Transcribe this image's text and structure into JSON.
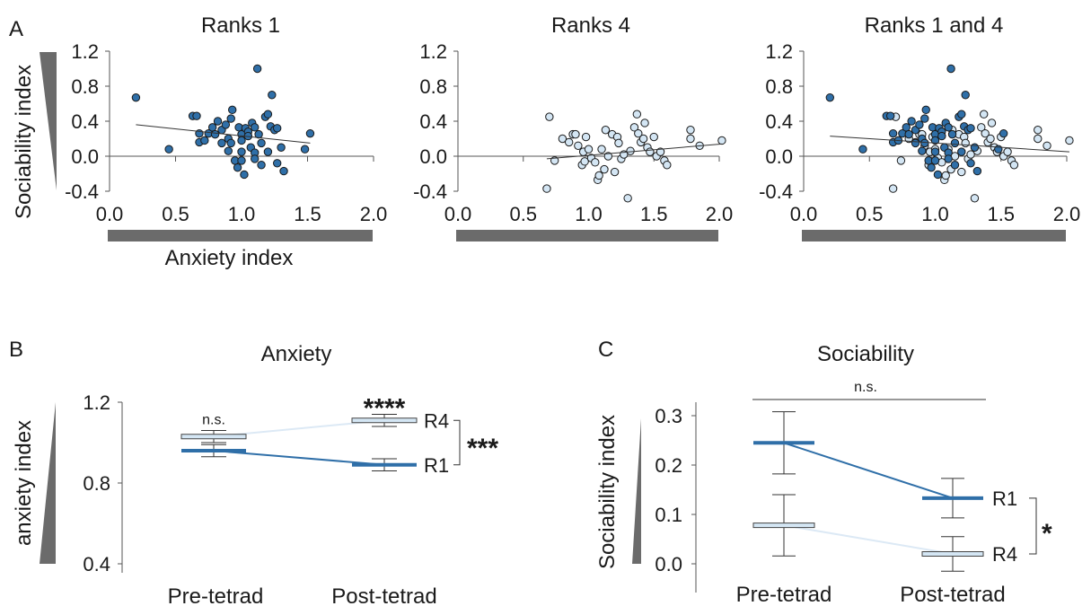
{
  "panel_letters": {
    "a": "A",
    "b": "B",
    "c": "C"
  },
  "colors": {
    "r1": "#2f6fa8",
    "r4": "#d4e6f4",
    "r4_line": "#dce9f5",
    "axis": "#555555",
    "wedge": "#6b6b6b"
  },
  "chart_data": [
    {
      "type": "scatter",
      "title": "Ranks 1",
      "xlabel": "Anxiety index",
      "ylabel": "Sociability index",
      "xlim": [
        0,
        2
      ],
      "ylim": [
        -0.4,
        1.2
      ],
      "xticks": [
        "0.0",
        "0.5",
        "1.0",
        "1.5",
        "2.0"
      ],
      "yticks": [
        "-0.4",
        "0.0",
        "0.4",
        "0.8",
        "1.2"
      ],
      "series": [
        {
          "group": "r1",
          "points": [
            [
              0.2,
              0.67
            ],
            [
              0.45,
              0.08
            ],
            [
              0.63,
              0.46
            ],
            [
              0.66,
              0.46
            ],
            [
              0.68,
              0.26
            ],
            [
              0.68,
              0.16
            ],
            [
              0.72,
              0.18
            ],
            [
              0.75,
              0.26
            ],
            [
              0.78,
              0.33
            ],
            [
              0.8,
              0.25
            ],
            [
              0.82,
              0.4
            ],
            [
              0.85,
              0.3
            ],
            [
              0.85,
              0.15
            ],
            [
              0.88,
              0.36
            ],
            [
              0.9,
              0.2
            ],
            [
              0.9,
              0.06
            ],
            [
              0.92,
              0.43
            ],
            [
              0.92,
              0.15
            ],
            [
              0.93,
              0.53
            ],
            [
              0.95,
              -0.05
            ],
            [
              0.97,
              -0.13
            ],
            [
              0.98,
              0.33
            ],
            [
              1.0,
              0.25
            ],
            [
              1.0,
              0.18
            ],
            [
              1.0,
              0.05
            ],
            [
              1.0,
              -0.05
            ],
            [
              1.02,
              -0.21
            ],
            [
              1.03,
              0.32
            ],
            [
              1.05,
              0.28
            ],
            [
              1.05,
              0.23
            ],
            [
              1.07,
              0.1
            ],
            [
              1.08,
              0.38
            ],
            [
              1.1,
              0.33
            ],
            [
              1.1,
              0.04
            ],
            [
              1.1,
              -0.03
            ],
            [
              1.12,
              1.0
            ],
            [
              1.13,
              0.25
            ],
            [
              1.15,
              0.15
            ],
            [
              1.15,
              -0.1
            ],
            [
              1.18,
              0.45
            ],
            [
              1.2,
              0.48
            ],
            [
              1.2,
              0.05
            ],
            [
              1.22,
              0.34
            ],
            [
              1.23,
              0.7
            ],
            [
              1.25,
              0.3
            ],
            [
              1.27,
              0.32
            ],
            [
              1.27,
              -0.08
            ],
            [
              1.3,
              0.1
            ],
            [
              1.32,
              -0.17
            ],
            [
              1.48,
              0.08
            ],
            [
              1.52,
              0.26
            ]
          ]
        }
      ],
      "fit": [
        [
          0.2,
          0.36
        ],
        [
          1.52,
          0.15
        ]
      ]
    },
    {
      "type": "scatter",
      "title": "Ranks 4",
      "xlabel": "",
      "ylabel": "",
      "xlim": [
        0,
        2
      ],
      "ylim": [
        -0.4,
        1.2
      ],
      "xticks": [
        "0.0",
        "0.5",
        "1.0",
        "1.5",
        "2.0"
      ],
      "yticks": [
        "-0.4",
        "0.0",
        "0.4",
        "0.8",
        "1.2"
      ],
      "series": [
        {
          "group": "r4",
          "points": [
            [
              0.68,
              -0.37
            ],
            [
              0.7,
              0.45
            ],
            [
              0.74,
              -0.05
            ],
            [
              0.8,
              0.2
            ],
            [
              0.85,
              0.16
            ],
            [
              0.88,
              0.25
            ],
            [
              0.9,
              0.25
            ],
            [
              0.92,
              0.12
            ],
            [
              0.95,
              -0.1
            ],
            [
              0.96,
              0.05
            ],
            [
              0.97,
              -0.06
            ],
            [
              0.98,
              0.22
            ],
            [
              1.0,
              0.08
            ],
            [
              1.02,
              -0.02
            ],
            [
              1.05,
              -0.07
            ],
            [
              1.07,
              -0.27
            ],
            [
              1.08,
              -0.22
            ],
            [
              1.1,
              0.08
            ],
            [
              1.12,
              -0.15
            ],
            [
              1.13,
              0.3
            ],
            [
              1.15,
              0.0
            ],
            [
              1.18,
              0.25
            ],
            [
              1.2,
              -0.18
            ],
            [
              1.22,
              0.22
            ],
            [
              1.23,
              0.15
            ],
            [
              1.25,
              -0.03
            ],
            [
              1.27,
              0.02
            ],
            [
              1.3,
              -0.48
            ],
            [
              1.32,
              0.06
            ],
            [
              1.35,
              0.33
            ],
            [
              1.37,
              0.48
            ],
            [
              1.38,
              0.26
            ],
            [
              1.4,
              0.16
            ],
            [
              1.42,
              0.2
            ],
            [
              1.43,
              0.38
            ],
            [
              1.45,
              0.1
            ],
            [
              1.47,
              0.05
            ],
            [
              1.5,
              0.22
            ],
            [
              1.52,
              0.0
            ],
            [
              1.55,
              0.05
            ],
            [
              1.58,
              -0.05
            ],
            [
              1.6,
              -0.1
            ],
            [
              1.78,
              0.3
            ],
            [
              1.78,
              0.2
            ],
            [
              1.85,
              0.12
            ],
            [
              2.02,
              0.18
            ]
          ]
        }
      ],
      "fit": [
        [
          0.68,
          -0.03
        ],
        [
          2.02,
          0.14
        ]
      ]
    },
    {
      "type": "scatter",
      "title": "Ranks 1 and 4",
      "xlabel": "",
      "ylabel": "",
      "xlim": [
        0,
        2
      ],
      "ylim": [
        -0.4,
        1.2
      ],
      "xticks": [
        "0.0",
        "0.5",
        "1.0",
        "1.5",
        "2.0"
      ],
      "yticks": [
        "-0.4",
        "0.0",
        "0.4",
        "0.8",
        "1.2"
      ],
      "series": [
        {
          "group": "r4",
          "points": [
            [
              0.68,
              -0.37
            ],
            [
              0.7,
              0.45
            ],
            [
              0.74,
              -0.05
            ],
            [
              0.8,
              0.2
            ],
            [
              0.85,
              0.16
            ],
            [
              0.88,
              0.25
            ],
            [
              0.9,
              0.25
            ],
            [
              0.92,
              0.12
            ],
            [
              0.95,
              -0.1
            ],
            [
              0.96,
              0.05
            ],
            [
              0.97,
              -0.06
            ],
            [
              0.98,
              0.22
            ],
            [
              1.0,
              0.08
            ],
            [
              1.02,
              -0.02
            ],
            [
              1.05,
              -0.07
            ],
            [
              1.07,
              -0.27
            ],
            [
              1.08,
              -0.22
            ],
            [
              1.1,
              0.08
            ],
            [
              1.12,
              -0.15
            ],
            [
              1.13,
              0.3
            ],
            [
              1.15,
              0.0
            ],
            [
              1.18,
              0.25
            ],
            [
              1.2,
              -0.18
            ],
            [
              1.22,
              0.22
            ],
            [
              1.23,
              0.15
            ],
            [
              1.25,
              -0.03
            ],
            [
              1.27,
              0.02
            ],
            [
              1.3,
              -0.48
            ],
            [
              1.32,
              0.06
            ],
            [
              1.35,
              0.33
            ],
            [
              1.37,
              0.48
            ],
            [
              1.38,
              0.26
            ],
            [
              1.4,
              0.16
            ],
            [
              1.42,
              0.2
            ],
            [
              1.43,
              0.38
            ],
            [
              1.45,
              0.1
            ],
            [
              1.47,
              0.05
            ],
            [
              1.5,
              0.22
            ],
            [
              1.52,
              0.0
            ],
            [
              1.55,
              0.05
            ],
            [
              1.58,
              -0.05
            ],
            [
              1.6,
              -0.1
            ],
            [
              1.78,
              0.3
            ],
            [
              1.78,
              0.2
            ],
            [
              1.85,
              0.12
            ],
            [
              2.02,
              0.18
            ]
          ]
        },
        {
          "group": "r1",
          "points": [
            [
              0.2,
              0.67
            ],
            [
              0.45,
              0.08
            ],
            [
              0.63,
              0.46
            ],
            [
              0.66,
              0.46
            ],
            [
              0.68,
              0.26
            ],
            [
              0.68,
              0.16
            ],
            [
              0.72,
              0.18
            ],
            [
              0.75,
              0.26
            ],
            [
              0.78,
              0.33
            ],
            [
              0.8,
              0.25
            ],
            [
              0.82,
              0.4
            ],
            [
              0.85,
              0.3
            ],
            [
              0.85,
              0.15
            ],
            [
              0.88,
              0.36
            ],
            [
              0.9,
              0.2
            ],
            [
              0.9,
              0.06
            ],
            [
              0.92,
              0.43
            ],
            [
              0.92,
              0.15
            ],
            [
              0.93,
              0.53
            ],
            [
              0.95,
              -0.05
            ],
            [
              0.97,
              -0.13
            ],
            [
              0.98,
              0.33
            ],
            [
              1.0,
              0.25
            ],
            [
              1.0,
              0.18
            ],
            [
              1.0,
              0.05
            ],
            [
              1.0,
              -0.05
            ],
            [
              1.02,
              -0.21
            ],
            [
              1.03,
              0.32
            ],
            [
              1.05,
              0.28
            ],
            [
              1.05,
              0.23
            ],
            [
              1.07,
              0.1
            ],
            [
              1.08,
              0.38
            ],
            [
              1.1,
              0.33
            ],
            [
              1.1,
              0.04
            ],
            [
              1.1,
              -0.03
            ],
            [
              1.12,
              1.0
            ],
            [
              1.13,
              0.25
            ],
            [
              1.15,
              0.15
            ],
            [
              1.15,
              -0.1
            ],
            [
              1.18,
              0.45
            ],
            [
              1.2,
              0.48
            ],
            [
              1.2,
              0.05
            ],
            [
              1.22,
              0.34
            ],
            [
              1.23,
              0.7
            ],
            [
              1.25,
              0.3
            ],
            [
              1.27,
              0.32
            ],
            [
              1.27,
              -0.08
            ],
            [
              1.3,
              0.1
            ],
            [
              1.32,
              -0.17
            ],
            [
              1.48,
              0.08
            ],
            [
              1.52,
              0.26
            ]
          ]
        }
      ],
      "fit": [
        [
          0.2,
          0.23
        ],
        [
          2.02,
          0.05
        ]
      ]
    },
    {
      "type": "line",
      "title": "Anxiety",
      "ylabel": "anxiety  index",
      "categories": [
        "Pre-tetrad",
        "Post-tetrad"
      ],
      "ylim": [
        0.4,
        1.2
      ],
      "yticks": [
        "0.4",
        "0.8",
        "1.2"
      ],
      "series": [
        {
          "name": "R4",
          "group": "r4",
          "values": [
            1.03,
            1.11
          ],
          "err": [
            0.03,
            0.03
          ]
        },
        {
          "name": "R1",
          "group": "r1",
          "values": [
            0.96,
            0.89
          ],
          "err": [
            0.03,
            0.03
          ]
        }
      ],
      "annotations": {
        "pre": "n.s.",
        "post": "****",
        "between": "***"
      }
    },
    {
      "type": "line",
      "title": "Sociability",
      "ylabel": "Sociability index",
      "categories": [
        "Pre-tetrad",
        "Post-tetrad"
      ],
      "ylim": [
        0.0,
        0.3
      ],
      "yticks": [
        "0.0",
        "0.1",
        "0.2",
        "0.3"
      ],
      "series": [
        {
          "name": "R1",
          "group": "r1",
          "values": [
            0.245,
            0.133
          ],
          "err": [
            0.063,
            0.04
          ]
        },
        {
          "name": "R4",
          "group": "r4",
          "values": [
            0.078,
            0.02
          ],
          "err": [
            0.062,
            0.035
          ]
        }
      ],
      "annotations": {
        "top": "n.s.",
        "between": "*"
      }
    }
  ]
}
